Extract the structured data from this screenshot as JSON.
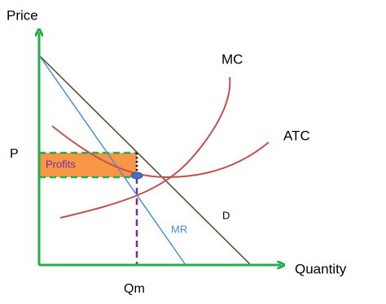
{
  "axes": {
    "y_label": "Price",
    "x_label": "Quantity",
    "price_mark": "P",
    "quantity_mark": "Qm"
  },
  "curves": {
    "mc": "MC",
    "atc": "ATC",
    "demand": "D",
    "mr": "MR"
  },
  "regions": {
    "profits": "Profits"
  }
}
